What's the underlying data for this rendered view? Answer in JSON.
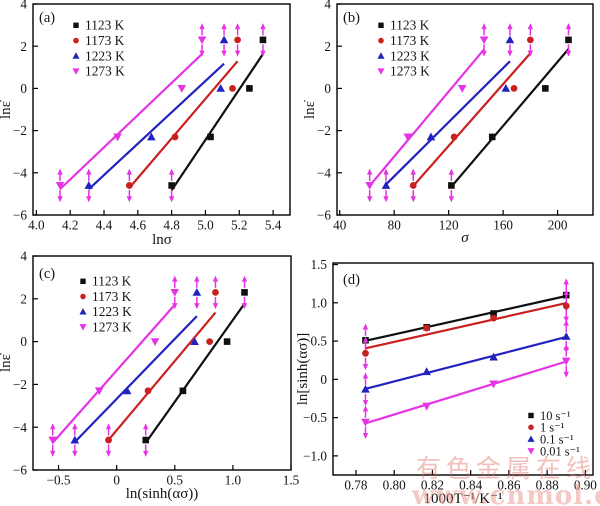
{
  "figure": {
    "watermark": {
      "line1": "有色金属在线",
      "line2": "www.cnmol.com"
    }
  },
  "colors": {
    "black_series": "#101010",
    "red_series": "#c92120",
    "blue_series": "#2222c0",
    "magenta_series": "#e534e5",
    "watermark_line1": "#e06a5f",
    "watermark_line2": "#ea958d",
    "axes": "#000000",
    "background": "#ffffff"
  },
  "chart_data": [
    {
      "id": "a",
      "type": "scatter",
      "panel_label": "(a)",
      "xlabel": "lnσ",
      "ylabel": "lnε̇",
      "xlim": [
        3.98,
        5.5
      ],
      "ylim": [
        -6,
        4
      ],
      "xticks": [
        4.0,
        4.2,
        4.4,
        4.6,
        4.8,
        5.0,
        5.2,
        5.4
      ],
      "xtick_labels": [
        "4.0",
        "4.2",
        "4.4",
        "4.6",
        "4.8",
        "5.0",
        "5.2",
        "5.4"
      ],
      "yticks": [
        -6,
        -4,
        -2,
        0,
        2,
        4
      ],
      "ytick_labels": [
        "−6",
        "−4",
        "−2",
        "0",
        "2",
        "4"
      ],
      "grid": false,
      "legend_position": "top-left",
      "fit_lines": true,
      "arrow_color": "#e534e5",
      "arrow_point_indices": [
        0,
        3
      ],
      "series": [
        {
          "name": "1123 K",
          "marker": "square",
          "color": "#101010",
          "x": [
            4.8,
            5.03,
            5.26,
            5.34
          ],
          "y": [
            -4.6,
            -2.3,
            0,
            2.3
          ]
        },
        {
          "name": "1173 K",
          "marker": "circle",
          "color": "#c92120",
          "x": [
            4.55,
            4.82,
            5.16,
            5.19
          ],
          "y": [
            -4.6,
            -2.3,
            0,
            2.3
          ]
        },
        {
          "name": "1223 K",
          "marker": "triangle-up",
          "color": "#2222c0",
          "x": [
            4.31,
            4.68,
            5.09,
            5.11
          ],
          "y": [
            -4.6,
            -2.3,
            0,
            2.3
          ]
        },
        {
          "name": "1273 K",
          "marker": "triangle-down",
          "color": "#e534e5",
          "x": [
            4.14,
            4.48,
            4.86,
            4.98
          ],
          "y": [
            -4.6,
            -2.3,
            0,
            2.3
          ]
        }
      ]
    },
    {
      "id": "b",
      "type": "scatter",
      "panel_label": "(b)",
      "xlabel": "σ",
      "xlabel_italic": true,
      "ylabel": "lnε̇",
      "xlim": [
        38,
        226
      ],
      "ylim": [
        -6,
        4
      ],
      "xticks": [
        40,
        80,
        120,
        160,
        200
      ],
      "xtick_labels": [
        "40",
        "80",
        "120",
        "160",
        "200"
      ],
      "yticks": [
        -6,
        -4,
        -2,
        0,
        2,
        4
      ],
      "ytick_labels": [
        "−6",
        "−4",
        "−2",
        "0",
        "2",
        "4"
      ],
      "grid": false,
      "legend_position": "top-left",
      "fit_lines": true,
      "arrow_color": "#e534e5",
      "arrow_point_indices": [
        0,
        3
      ],
      "series": [
        {
          "name": "1123 K",
          "marker": "square",
          "color": "#101010",
          "x": [
            122,
            152,
            191,
            208
          ],
          "y": [
            -4.6,
            -2.3,
            0,
            2.3
          ]
        },
        {
          "name": "1173 K",
          "marker": "circle",
          "color": "#c92120",
          "x": [
            94,
            124,
            168,
            180
          ],
          "y": [
            -4.6,
            -2.3,
            0,
            2.3
          ]
        },
        {
          "name": "1223 K",
          "marker": "triangle-up",
          "color": "#2222c0",
          "x": [
            74,
            107,
            162,
            165
          ],
          "y": [
            -4.6,
            -2.3,
            0,
            2.3
          ]
        },
        {
          "name": "1273 K",
          "marker": "triangle-down",
          "color": "#e534e5",
          "x": [
            62,
            90,
            130,
            146
          ],
          "y": [
            -4.6,
            -2.3,
            0,
            2.3
          ]
        }
      ]
    },
    {
      "id": "c",
      "type": "scatter",
      "panel_label": "(c)",
      "xlabel": "ln(sinh(ασ))",
      "ylabel": "lnε̇",
      "xlim": [
        -0.72,
        1.5
      ],
      "ylim": [
        -6,
        4
      ],
      "xticks": [
        -0.5,
        0,
        0.5,
        1.0,
        1.5
      ],
      "xtick_labels": [
        "−0.5",
        "0",
        "0.5",
        "1.0",
        "1.5"
      ],
      "yticks": [
        -6,
        -4,
        -2,
        0,
        2,
        4
      ],
      "ytick_labels": [
        "−6",
        "−4",
        "−2",
        "0",
        "2",
        "4"
      ],
      "grid": false,
      "legend_position": "top-left",
      "fit_lines": true,
      "arrow_color": "#e534e5",
      "arrow_point_indices": [
        0,
        3
      ],
      "series": [
        {
          "name": "1123 K",
          "marker": "square",
          "color": "#101010",
          "x": [
            0.25,
            0.57,
            0.95,
            1.1
          ],
          "y": [
            -4.6,
            -2.3,
            0,
            2.3
          ]
        },
        {
          "name": "1173 K",
          "marker": "circle",
          "color": "#c92120",
          "x": [
            -0.07,
            0.27,
            0.8,
            0.85
          ],
          "y": [
            -4.6,
            -2.3,
            0,
            2.3
          ]
        },
        {
          "name": "1223 K",
          "marker": "triangle-up",
          "color": "#2222c0",
          "x": [
            -0.36,
            0.09,
            0.67,
            0.69
          ],
          "y": [
            -4.6,
            -2.3,
            0,
            2.3
          ]
        },
        {
          "name": "1273 K",
          "marker": "triangle-down",
          "color": "#e534e5",
          "x": [
            -0.55,
            -0.15,
            0.33,
            0.5
          ],
          "y": [
            -4.6,
            -2.3,
            0,
            2.3
          ]
        }
      ]
    },
    {
      "id": "d",
      "type": "scatter",
      "panel_label": "(d)",
      "xlabel": "1000T⁻¹/K⁻¹",
      "ylabel": "ln[sinh(ασ)]",
      "xlim": [
        0.768,
        0.904
      ],
      "ylim": [
        -1.25,
        1.52
      ],
      "xticks": [
        0.78,
        0.8,
        0.82,
        0.84,
        0.86,
        0.88,
        0.9
      ],
      "xtick_labels": [
        "0.78",
        "0.80",
        "0.82",
        "0.84",
        "0.86",
        "0.88",
        "0.90"
      ],
      "yticks": [
        -1.0,
        -0.5,
        0,
        0.5,
        1.0,
        1.5
      ],
      "ytick_labels": [
        "−1.0",
        "−0.5",
        "0",
        "0.5",
        "1.0",
        "1.5"
      ],
      "grid": false,
      "legend_position": "bottom-right",
      "fit_lines": true,
      "arrow_color": "#e534e5",
      "arrow_point_indices": [
        0,
        3
      ],
      "series": [
        {
          "name": "10 s⁻¹",
          "marker": "square",
          "color": "#101010",
          "x": [
            0.785,
            0.817,
            0.852,
            0.89
          ],
          "y": [
            0.51,
            0.68,
            0.86,
            1.1
          ]
        },
        {
          "name": "1 s⁻¹",
          "marker": "circle",
          "color": "#c92120",
          "x": [
            0.785,
            0.817,
            0.852,
            0.89
          ],
          "y": [
            0.34,
            0.67,
            0.8,
            0.96
          ]
        },
        {
          "name": "0.1 s⁻¹",
          "marker": "triangle-up",
          "color": "#2222c0",
          "x": [
            0.785,
            0.817,
            0.852,
            0.89
          ],
          "y": [
            -0.13,
            0.1,
            0.29,
            0.56
          ]
        },
        {
          "name": "0.01 s⁻¹",
          "marker": "triangle-down",
          "color": "#e534e5",
          "x": [
            0.785,
            0.817,
            0.852,
            0.89
          ],
          "y": [
            -0.56,
            -0.35,
            -0.06,
            0.24
          ]
        }
      ]
    }
  ]
}
